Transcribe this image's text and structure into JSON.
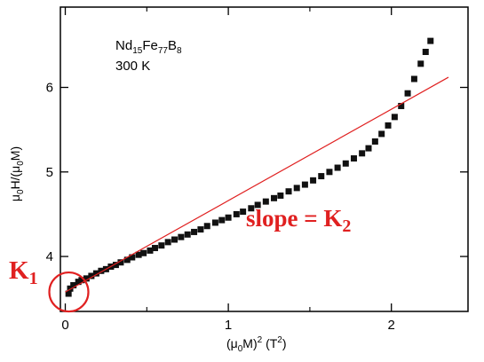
{
  "chart_data": {
    "type": "scatter",
    "sample": {
      "base": "Nd",
      "sub1": "15",
      "mid": "Fe",
      "sub2": "77",
      "end": "B",
      "sub3": "8"
    },
    "temperature": "300 K",
    "xlabel": {
      "pre": "(μ",
      "sub": "0",
      "mid": "M)",
      "sup": "2",
      "post": " (T",
      "sup2": "2",
      "close": ")"
    },
    "ylabel": {
      "pre": "μ",
      "sub": "0",
      "mid": "H/(μ",
      "sub2": "0",
      "end": "M)"
    },
    "xlim": [
      -0.03,
      2.47
    ],
    "ylim": [
      3.35,
      6.95
    ],
    "x_ticks": [
      0,
      1,
      2
    ],
    "y_ticks": [
      4,
      5,
      6
    ],
    "x_minor_ticks": [
      0.5,
      1.5
    ],
    "grid": false,
    "series": [
      {
        "points": [
          [
            0.02,
            3.56
          ],
          [
            0.03,
            3.62
          ],
          [
            0.05,
            3.66
          ],
          [
            0.08,
            3.7
          ],
          [
            0.1,
            3.72
          ],
          [
            0.13,
            3.74
          ],
          [
            0.16,
            3.77
          ],
          [
            0.19,
            3.8
          ],
          [
            0.22,
            3.83
          ],
          [
            0.25,
            3.85
          ],
          [
            0.28,
            3.88
          ],
          [
            0.31,
            3.9
          ],
          [
            0.34,
            3.93
          ],
          [
            0.38,
            3.96
          ],
          [
            0.41,
            3.99
          ],
          [
            0.45,
            4.02
          ],
          [
            0.48,
            4.04
          ],
          [
            0.52,
            4.07
          ],
          [
            0.55,
            4.1
          ],
          [
            0.59,
            4.13
          ],
          [
            0.63,
            4.17
          ],
          [
            0.67,
            4.2
          ],
          [
            0.71,
            4.23
          ],
          [
            0.75,
            4.26
          ],
          [
            0.79,
            4.29
          ],
          [
            0.83,
            4.32
          ],
          [
            0.87,
            4.36
          ],
          [
            0.92,
            4.4
          ],
          [
            0.96,
            4.43
          ],
          [
            1.0,
            4.46
          ],
          [
            1.05,
            4.5
          ],
          [
            1.09,
            4.53
          ],
          [
            1.14,
            4.57
          ],
          [
            1.18,
            4.61
          ],
          [
            1.23,
            4.65
          ],
          [
            1.28,
            4.69
          ],
          [
            1.32,
            4.72
          ],
          [
            1.37,
            4.77
          ],
          [
            1.42,
            4.81
          ],
          [
            1.47,
            4.85
          ],
          [
            1.52,
            4.9
          ],
          [
            1.57,
            4.95
          ],
          [
            1.62,
            5.0
          ],
          [
            1.67,
            5.05
          ],
          [
            1.72,
            5.1
          ],
          [
            1.77,
            5.16
          ],
          [
            1.82,
            5.22
          ],
          [
            1.86,
            5.28
          ],
          [
            1.9,
            5.36
          ],
          [
            1.94,
            5.45
          ],
          [
            1.98,
            5.55
          ],
          [
            2.02,
            5.65
          ],
          [
            2.06,
            5.78
          ],
          [
            2.1,
            5.93
          ],
          [
            2.14,
            6.1
          ],
          [
            2.18,
            6.28
          ],
          [
            2.21,
            6.42
          ],
          [
            2.24,
            6.55
          ]
        ]
      }
    ],
    "fit_line": {
      "x": [
        0.0,
        2.35
      ],
      "y": [
        3.58,
        6.12
      ],
      "color": "#e02020"
    },
    "annotations": {
      "slope_label": {
        "text": "slope = K",
        "sub": "2",
        "color": "#e02020"
      },
      "intercept_label": {
        "text": "K",
        "sub": "1",
        "color": "#e02020"
      },
      "intercept_circle": {
        "x": 0.0,
        "y": 3.58,
        "color": "#e02020"
      }
    },
    "marker_color": "#111111"
  }
}
